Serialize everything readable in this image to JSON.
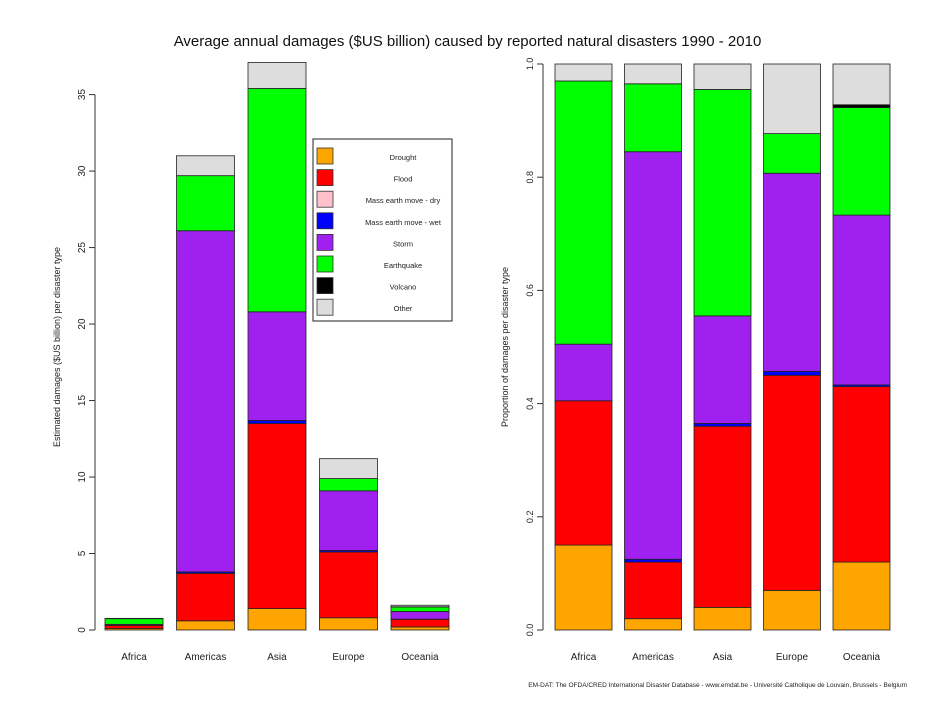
{
  "chart_data": [
    {
      "type": "bar",
      "stacked": true,
      "title": "Average annual damages ($US billion) caused by reported natural disasters 1990 - 2010",
      "ylabel": "Estimated damages ($US billion) per disaster type",
      "xlabel": "",
      "ylim": [
        0,
        37
      ],
      "yticks": [
        0,
        5,
        10,
        15,
        20,
        25,
        30,
        35
      ],
      "categories": [
        "Africa",
        "Americas",
        "Asia",
        "Europe",
        "Oceania"
      ],
      "legend": "top-right",
      "series": [
        {
          "name": "Drought",
          "color": "#FFA500",
          "values": [
            0.1,
            0.6,
            1.4,
            0.8,
            0.2
          ]
        },
        {
          "name": "Flood",
          "color": "#FF0000",
          "values": [
            0.2,
            3.1,
            12.1,
            4.3,
            0.5
          ]
        },
        {
          "name": "Mass earth move - dry",
          "color": "#FFC0CB",
          "values": [
            0,
            0,
            0,
            0,
            0
          ]
        },
        {
          "name": "Mass earth move - wet",
          "color": "#0000FF",
          "values": [
            0,
            0.1,
            0.2,
            0.1,
            0.01
          ]
        },
        {
          "name": "Storm",
          "color": "#A020F0",
          "values": [
            0.07,
            22.3,
            7.1,
            3.9,
            0.5
          ]
        },
        {
          "name": "Earthquake",
          "color": "#00FF00",
          "values": [
            0.37,
            3.6,
            14.6,
            0.8,
            0.3
          ]
        },
        {
          "name": "Volcano",
          "color": "#000000",
          "values": [
            0,
            0,
            0,
            0,
            0.01
          ]
        },
        {
          "name": "Other",
          "color": "#DDDDDD",
          "values": [
            0.02,
            1.3,
            1.7,
            1.3,
            0.1
          ]
        }
      ]
    },
    {
      "type": "bar",
      "stacked": true,
      "ylabel": "Proportion of damages per disaster type",
      "xlabel": "",
      "ylim": [
        0,
        1
      ],
      "yticks": [
        "0.0",
        "0.2",
        "0.4",
        "0.6",
        "0.8",
        "1.0"
      ],
      "categories": [
        "Africa",
        "Americas",
        "Asia",
        "Europe",
        "Oceania"
      ],
      "series": [
        {
          "name": "Drought",
          "color": "#FFA500",
          "values": [
            0.15,
            0.02,
            0.04,
            0.07,
            0.12
          ]
        },
        {
          "name": "Flood",
          "color": "#FF0000",
          "values": [
            0.255,
            0.1,
            0.32,
            0.38,
            0.31
          ]
        },
        {
          "name": "Mass earth move - dry",
          "color": "#FFC0CB",
          "values": [
            0,
            0,
            0,
            0,
            0
          ]
        },
        {
          "name": "Mass earth move - wet",
          "color": "#0000FF",
          "values": [
            0,
            0.005,
            0.005,
            0.007,
            0.003
          ]
        },
        {
          "name": "Storm",
          "color": "#A020F0",
          "values": [
            0.1,
            0.72,
            0.19,
            0.35,
            0.3
          ]
        },
        {
          "name": "Earthquake",
          "color": "#00FF00",
          "values": [
            0.465,
            0.12,
            0.4,
            0.07,
            0.19
          ]
        },
        {
          "name": "Volcano",
          "color": "#000000",
          "values": [
            0,
            0,
            0,
            0,
            0.005
          ]
        },
        {
          "name": "Other",
          "color": "#DDDDDD",
          "values": [
            0.03,
            0.035,
            0.045,
            0.123,
            0.072
          ]
        }
      ]
    }
  ],
  "source_note": "EM-DAT: The OFDA/CRED International Disaster Database - www.emdat.be - Université Catholique de Louvain, Brussels - Belgium"
}
